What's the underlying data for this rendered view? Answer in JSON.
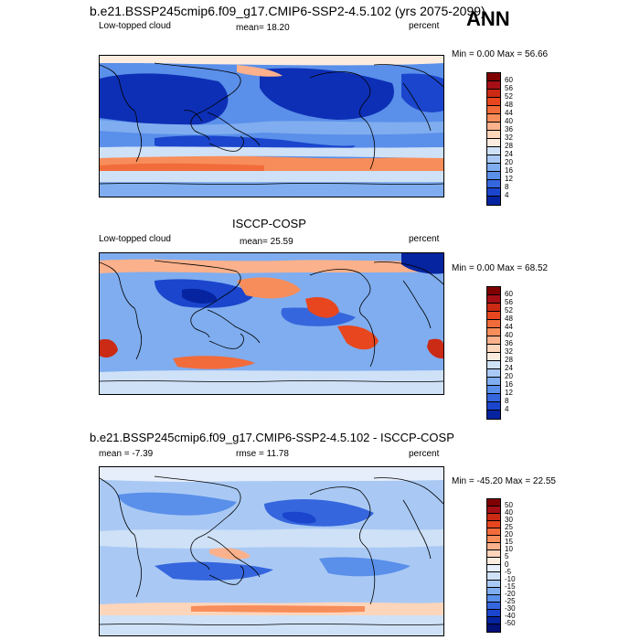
{
  "season": "ANN",
  "panels": [
    {
      "title": "b.e21.BSSP245cmip6.f09_g17.CMIP6-SSP2-4.5.102 (yrs 2075-2099)",
      "left": "Low-topped cloud",
      "center": "mean=  18.20",
      "right": "percent",
      "minmax": "Min =   0.00 Max =  56.66",
      "colorbar": {
        "ticks": [
          "60",
          "56",
          "52",
          "48",
          "44",
          "40",
          "36",
          "32",
          "28",
          "24",
          "20",
          "16",
          "12",
          "8",
          "4"
        ],
        "colors": [
          "#7f0000",
          "#a50f15",
          "#cb2a14",
          "#e8461e",
          "#f26b3a",
          "#f78d5a",
          "#fbb18b",
          "#fdd5bb",
          "#fcecdf",
          "#cfe1f7",
          "#a9c9f4",
          "#7fadef",
          "#5a8fea",
          "#3566dd",
          "#1a45cc",
          "#06249f"
        ]
      }
    },
    {
      "title": "ISCCP-COSP",
      "left": "Low-topped cloud",
      "center": "mean=  25.59",
      "right": "percent",
      "minmax": "Min =   0.00 Max =  68.52",
      "colorbar": {
        "ticks": [
          "60",
          "56",
          "52",
          "48",
          "44",
          "40",
          "36",
          "32",
          "28",
          "24",
          "20",
          "16",
          "12",
          "8",
          "4"
        ],
        "colors": [
          "#7f0000",
          "#a50f15",
          "#cb2a14",
          "#e8461e",
          "#f26b3a",
          "#f78d5a",
          "#fbb18b",
          "#fdd5bb",
          "#fcecdf",
          "#cfe1f7",
          "#a9c9f4",
          "#7fadef",
          "#5a8fea",
          "#3566dd",
          "#1a45cc",
          "#06249f"
        ]
      }
    },
    {
      "title": "b.e21.BSSP245cmip6.f09_g17.CMIP6-SSP2-4.5.102 - ISCCP-COSP",
      "left": "mean =  -7.39",
      "center": "rmse =  11.78",
      "right": "percent",
      "minmax": "Min = -45.20 Max =  22.55",
      "colorbar": {
        "ticks": [
          "50",
          "40",
          "30",
          "25",
          "20",
          "15",
          "10",
          "5",
          "0",
          "-5",
          "-10",
          "-15",
          "-20",
          "-25",
          "-30",
          "-40",
          "-50"
        ],
        "colors": [
          "#7f0000",
          "#a50f15",
          "#cb2a14",
          "#e8461e",
          "#f26b3a",
          "#f78d5a",
          "#fbb18b",
          "#fdd5bb",
          "#fcecdf",
          "#e6eefb",
          "#cfe1f7",
          "#a9c9f4",
          "#7fadef",
          "#5a8fea",
          "#3566dd",
          "#1a45cc",
          "#06249f",
          "#021078"
        ]
      }
    }
  ]
}
